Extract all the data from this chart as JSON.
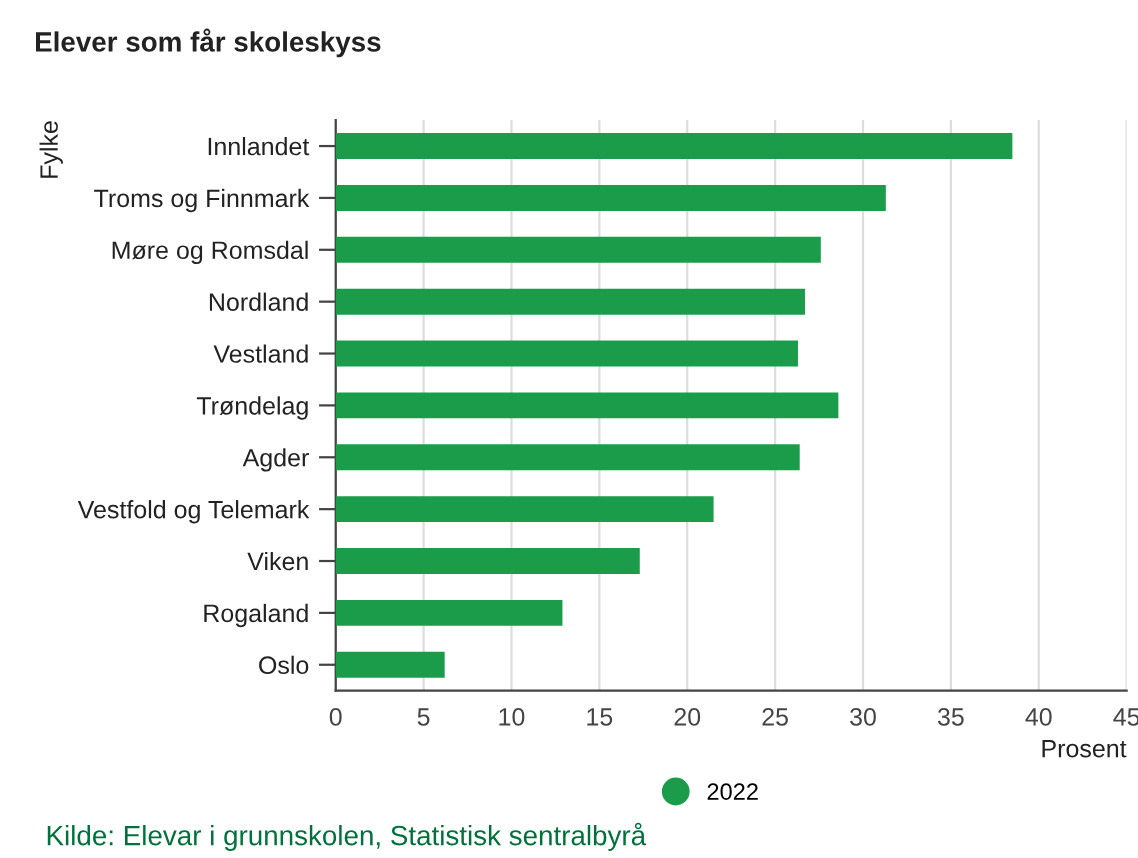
{
  "chart_data": {
    "type": "bar",
    "orientation": "horizontal",
    "title": "Elever som får skoleskyss",
    "ylabel": "Fylke",
    "xlabel": "Prosent",
    "categories": [
      "Innlandet",
      "Troms og Finnmark",
      "Møre og Romsdal",
      "Nordland",
      "Vestland",
      "Trøndelag",
      "Agder",
      "Vestfold og Telemark",
      "Viken",
      "Rogaland",
      "Oslo"
    ],
    "series": [
      {
        "name": "2022",
        "color": "#1a9c4a",
        "values": [
          38.5,
          31.3,
          27.6,
          26.7,
          26.3,
          28.6,
          26.4,
          21.5,
          17.3,
          12.9,
          6.2
        ]
      }
    ],
    "xlim": [
      0,
      45
    ],
    "xticks": [
      0,
      5,
      10,
      15,
      20,
      25,
      30,
      35,
      40,
      45
    ],
    "grid": "x",
    "legend": "bottom",
    "annotations": [
      "Kilde: Elevar i grunnskolen, Statistisk sentralbyrå"
    ]
  }
}
